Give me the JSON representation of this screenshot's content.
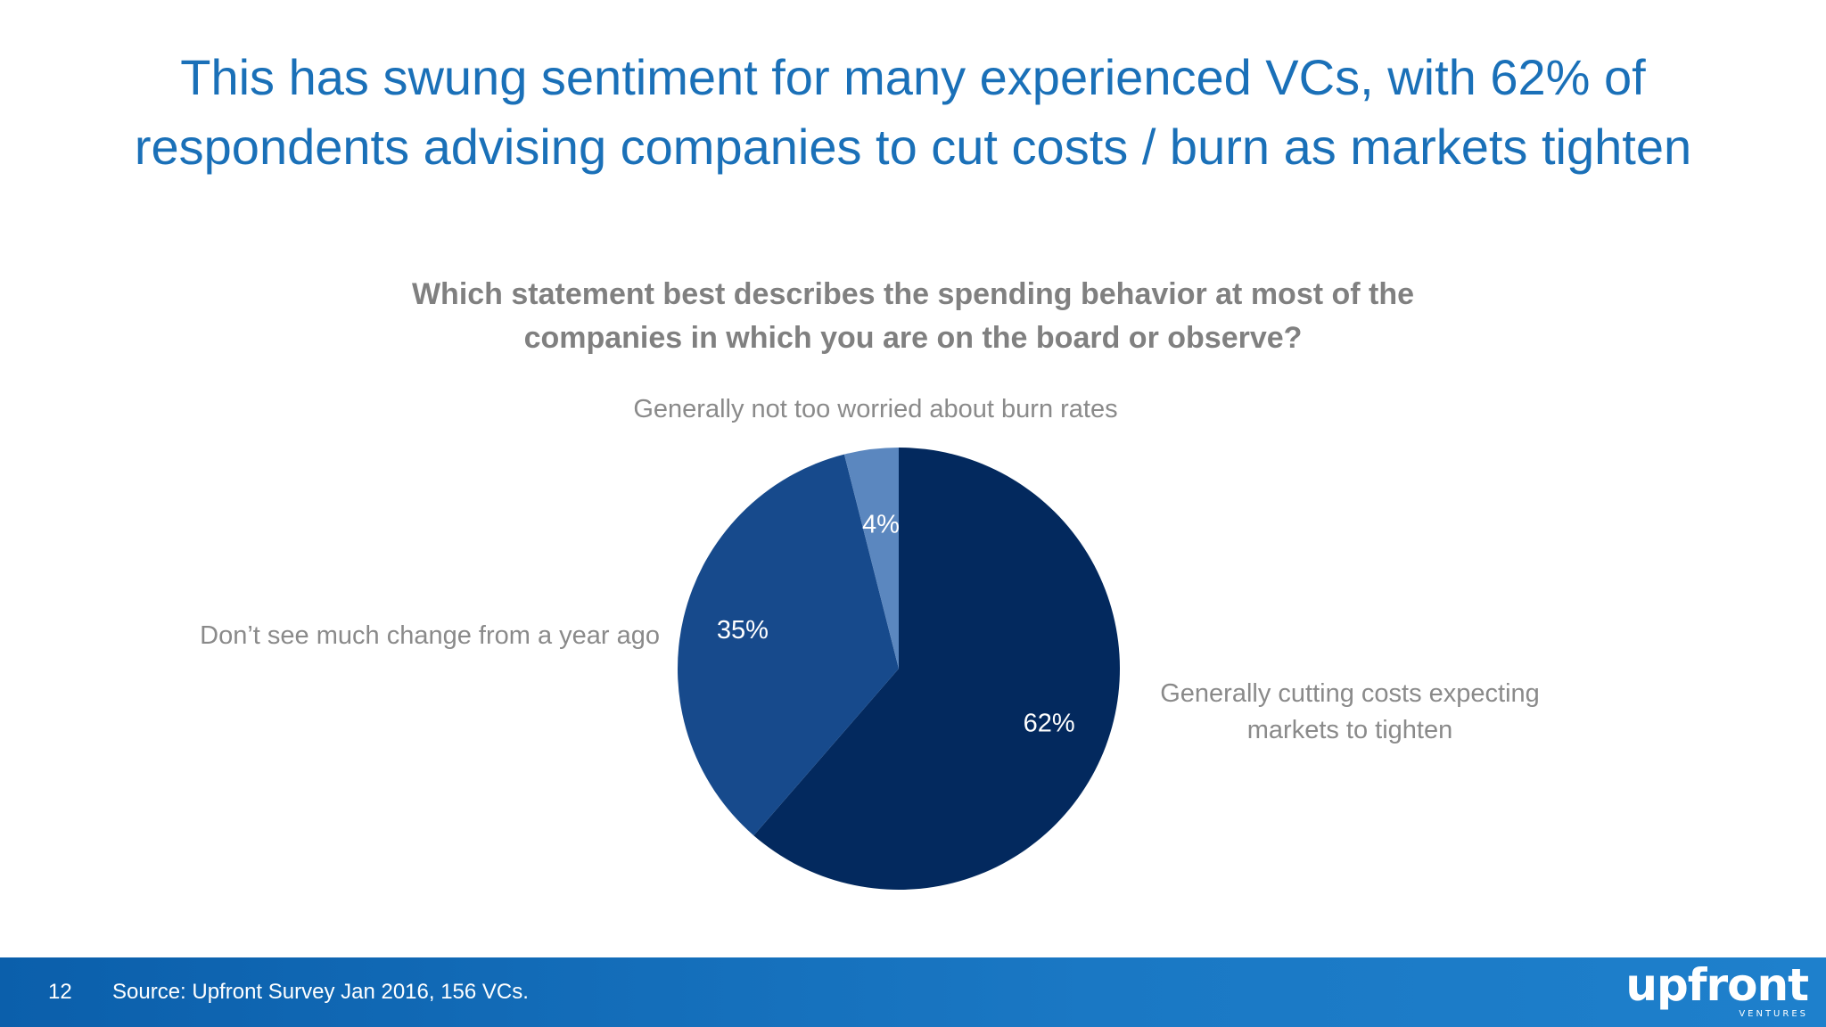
{
  "slide": {
    "headline": "This has swung sentiment for many experienced VCs, with 62% of respondents advising companies to cut costs / burn as markets tighten",
    "footer": {
      "page_number": "12",
      "source": "Source: Upfront Survey Jan 2016, 156 VCs.",
      "logo_text": "upfront",
      "logo_subtext": "VENTURES"
    }
  },
  "chart_data": {
    "type": "pie",
    "title": "Which statement best describes the spending behavior at most of the companies in which you are on the board or observe?",
    "slices": [
      {
        "name": "Generally cutting costs expecting markets to tighten",
        "value": 62,
        "label": "62%",
        "color": "#03295e"
      },
      {
        "name": "Don’t see much change from a year ago",
        "value": 35,
        "label": "35%",
        "color": "#174a8c"
      },
      {
        "name": "Generally not too worried about burn rates",
        "value": 4,
        "label": "4%",
        "color": "#5b87bf"
      }
    ],
    "start_angle_deg": 0,
    "direction": "clockwise",
    "legend": "none"
  },
  "colors": {
    "headline": "#1a70b8",
    "footer_bar": "#1470bd",
    "label_text": "#8a8a8a"
  }
}
